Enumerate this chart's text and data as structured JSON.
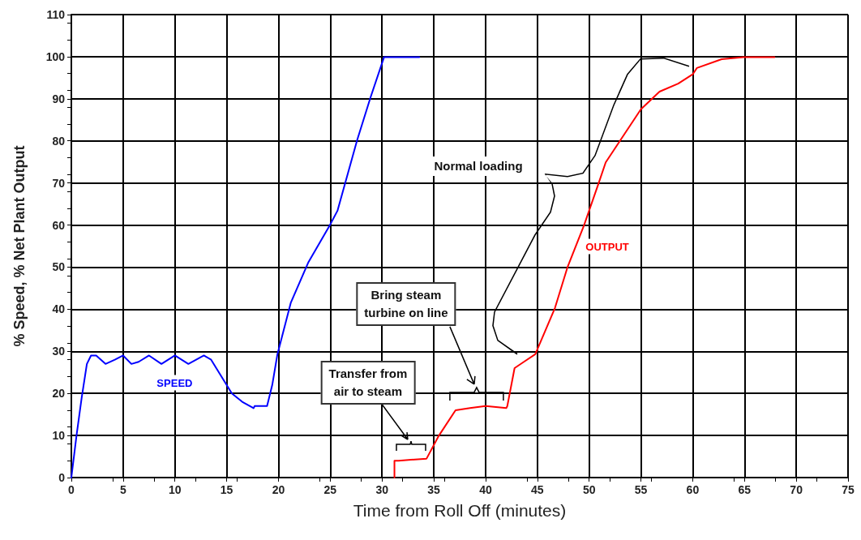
{
  "chart_data": {
    "type": "line",
    "xlabel": "Time from Roll Off (minutes)",
    "ylabel": "% Speed, % Net Plant Output",
    "xlim": [
      0,
      75
    ],
    "xticks": [
      0,
      5,
      10,
      15,
      20,
      25,
      30,
      35,
      40,
      45,
      50,
      55,
      60,
      65,
      70,
      75
    ],
    "ylim": [
      0,
      110
    ],
    "yticks": [
      0,
      10,
      20,
      30,
      40,
      50,
      60,
      70,
      80,
      90,
      100,
      110
    ],
    "grid": true,
    "legend": false,
    "marker": "none",
    "line_style": "solid",
    "series": [
      {
        "name": "SPEED",
        "color": "#0000ff",
        "x": [
          0,
          0.5,
          1,
          1.5,
          1.9,
          2.4,
          3.3,
          4.2,
          5,
          5.8,
          6.5,
          7.5,
          8.7,
          10,
          11.3,
          12.8,
          13.5,
          14.5,
          15.5,
          16.5,
          17.6,
          17.7,
          18.9,
          19.4,
          19.9,
          21.2,
          22.9,
          24.95,
          25.7,
          27.6,
          28.9,
          30.2,
          33.6
        ],
        "values": [
          0,
          10,
          19,
          27,
          29,
          29,
          27,
          28,
          29,
          27,
          27.5,
          29,
          27,
          29,
          27,
          29,
          28,
          24,
          20,
          18,
          16.5,
          17,
          17,
          22,
          29.3,
          41.6,
          51.2,
          59.9,
          63.4,
          80.2,
          90.4,
          99.9,
          99.9
        ]
      },
      {
        "name": "OUTPUT",
        "color": "#ff0000",
        "x": [
          31.2,
          31.2,
          31.6,
          34.3,
          35.5,
          37.1,
          38.5,
          40,
          42,
          42.1,
          42.8,
          43.7,
          44.8,
          46.7,
          47.9,
          49.5,
          50.9,
          51.6,
          53,
          55,
          56.8,
          58.6,
          60,
          60.4,
          62.8,
          64.9,
          67.9
        ],
        "values": [
          0,
          4,
          4,
          4.5,
          10,
          16,
          16.5,
          17,
          16.5,
          17,
          26,
          27.5,
          29.3,
          40.3,
          49.9,
          59.9,
          69.8,
          74.9,
          80.1,
          87.5,
          91.7,
          93.6,
          95.8,
          97.3,
          99.4,
          99.9,
          99.9
        ]
      }
    ],
    "annotations": [
      {
        "text": "Transfer from\nair to steam",
        "x": 32.8,
        "y": 7.5
      },
      "Bring steam\nturbine on line",
      "Normal loading"
    ]
  }
}
